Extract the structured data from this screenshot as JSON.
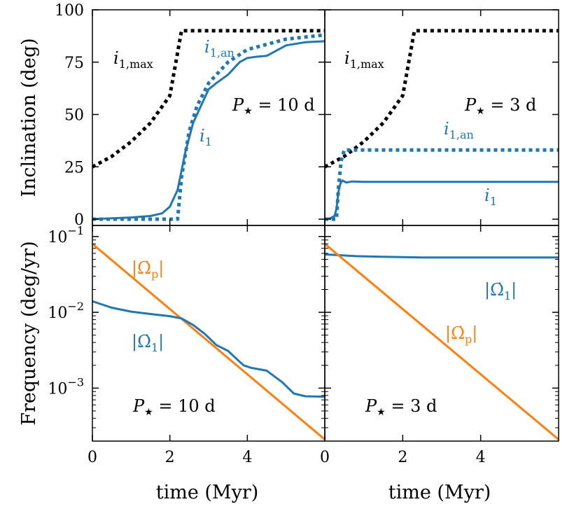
{
  "colors": {
    "blue": "#1f77b4",
    "orange": "#ff7f0e",
    "black": "#000000"
  },
  "axes_text": {
    "x_title": "time (Myr)",
    "y_top_title": "Inclination (deg)",
    "y_bottom_title": "Frequency (deg/yr)",
    "x_ticks": [
      "0",
      "2",
      "4"
    ],
    "y_top_ticks": [
      "0",
      "25",
      "50",
      "75",
      "100"
    ],
    "log_tick_base": "10",
    "log_tick_exponents": [
      "−1",
      "−2",
      "−3"
    ]
  },
  "chart_data": [
    {
      "type": "line",
      "panel": "top-left",
      "xlim": [
        0,
        6
      ],
      "ylim": [
        -3,
        100
      ],
      "xlabel": "time (Myr)",
      "ylabel": "Inclination (deg)",
      "x_ticks": [
        0,
        2,
        4
      ],
      "y_ticks": [
        0,
        25,
        50,
        75,
        100
      ],
      "annotation": "P★ = 10 d",
      "series": [
        {
          "name": "i_1,max",
          "label": "i1,max",
          "style": "dotted",
          "color": "#000000",
          "x": [
            0,
            0.5,
            1.0,
            1.5,
            2.0,
            2.3,
            3,
            4,
            5,
            6
          ],
          "y": [
            25,
            30,
            37,
            46,
            59,
            90,
            90,
            90,
            90,
            90
          ]
        },
        {
          "name": "i_1,an",
          "label": "i1,an",
          "style": "dotted",
          "color": "#1f77b4",
          "x": [
            0,
            2.2,
            2.3,
            2.5,
            2.7,
            3.0,
            3.5,
            4.0,
            5.0,
            6.0
          ],
          "y": [
            0,
            0,
            20,
            42,
            54,
            65,
            75,
            81,
            86,
            88
          ]
        },
        {
          "name": "i_1",
          "label": "i1",
          "style": "solid",
          "color": "#1f77b4",
          "x": [
            0,
            1.0,
            1.5,
            1.8,
            2.0,
            2.2,
            2.4,
            2.6,
            2.8,
            3.0,
            3.2,
            3.5,
            3.8,
            4.0,
            4.2,
            4.5,
            5.0,
            5.5,
            6.0
          ],
          "y": [
            0,
            0.8,
            1.5,
            2.8,
            6,
            14,
            32,
            46,
            54,
            62,
            65,
            69,
            75,
            77,
            77.5,
            78,
            83,
            84.5,
            85
          ]
        }
      ]
    },
    {
      "type": "line",
      "panel": "top-right",
      "xlim": [
        0,
        6
      ],
      "ylim": [
        -3,
        100
      ],
      "xlabel": "time (Myr)",
      "ylabel": "",
      "x_ticks": [
        0,
        2,
        4
      ],
      "y_ticks": [
        0,
        25,
        50,
        75,
        100
      ],
      "annotation": "P★ = 3 d",
      "series": [
        {
          "name": "i_1,max",
          "label": "i1,max",
          "style": "dotted",
          "color": "#000000",
          "x": [
            0,
            0.5,
            1.0,
            1.5,
            2.0,
            2.3,
            3,
            4,
            5,
            6
          ],
          "y": [
            25,
            30,
            37,
            46,
            59,
            90,
            90,
            90,
            90,
            90
          ]
        },
        {
          "name": "i_1,an",
          "label": "i1,an",
          "style": "dotted",
          "color": "#1f77b4",
          "x": [
            0,
            0.3,
            0.35,
            0.42,
            0.5,
            1,
            2,
            3,
            4,
            5,
            6
          ],
          "y": [
            0,
            0,
            15,
            28,
            33,
            33,
            33,
            33,
            33,
            33,
            33
          ]
        },
        {
          "name": "i_1",
          "label": "i1",
          "style": "solid",
          "color": "#1f77b4",
          "x": [
            0,
            0.15,
            0.25,
            0.3,
            0.35,
            0.4,
            0.45,
            0.55,
            0.7,
            1,
            2,
            3,
            4,
            5,
            6
          ],
          "y": [
            0,
            0.5,
            1.5,
            5,
            13,
            17,
            18.5,
            17.5,
            18,
            17.8,
            17.8,
            17.8,
            17.8,
            17.8,
            17.8
          ]
        }
      ]
    },
    {
      "type": "line",
      "panel": "bottom-left",
      "xlim": [
        0,
        6
      ],
      "ylim": [
        0.0002,
        0.14
      ],
      "yscale": "log",
      "xlabel": "time (Myr)",
      "ylabel": "Frequency (deg/yr)",
      "x_ticks": [
        0,
        2,
        4
      ],
      "y_ticks": [
        0.1,
        0.01,
        0.001
      ],
      "annotation": "P★ = 10 d",
      "series": [
        {
          "name": "|dOmega_p|",
          "label": "|Ω̇p|",
          "style": "solid",
          "color": "#ff7f0e",
          "x": [
            0,
            6
          ],
          "y": [
            0.08,
            0.00021
          ]
        },
        {
          "name": "|dOmega_1|",
          "label": "|Ω̇1|",
          "style": "solid",
          "color": "#1f77b4",
          "x": [
            0,
            0.5,
            1.0,
            1.5,
            2.0,
            2.3,
            2.6,
            2.9,
            3.2,
            3.5,
            3.9,
            4.1,
            4.5,
            4.9,
            5.2,
            5.5,
            6.0
          ],
          "y": [
            0.014,
            0.0115,
            0.0102,
            0.0095,
            0.0089,
            0.0083,
            0.0068,
            0.0052,
            0.0037,
            0.0031,
            0.002,
            0.00185,
            0.0017,
            0.0012,
            0.00085,
            0.00078,
            0.00077
          ]
        }
      ]
    },
    {
      "type": "line",
      "panel": "bottom-right",
      "xlim": [
        0,
        6
      ],
      "ylim": [
        0.0002,
        0.14
      ],
      "yscale": "log",
      "xlabel": "time (Myr)",
      "ylabel": "",
      "x_ticks": [
        0,
        2,
        4
      ],
      "y_ticks": [
        0.1,
        0.01,
        0.001
      ],
      "annotation": "P★ = 3 d",
      "series": [
        {
          "name": "|dOmega_1|",
          "label": "|Ω̇1|",
          "style": "solid",
          "color": "#1f77b4",
          "x": [
            0,
            0.3,
            0.8,
            1.5,
            2.5,
            4,
            6
          ],
          "y": [
            0.058,
            0.057,
            0.055,
            0.054,
            0.053,
            0.053,
            0.053
          ]
        },
        {
          "name": "|dOmega_p|",
          "label": "|Ω̇p|",
          "style": "solid",
          "color": "#ff7f0e",
          "x": [
            0,
            6
          ],
          "y": [
            0.08,
            0.00021
          ]
        }
      ]
    }
  ]
}
